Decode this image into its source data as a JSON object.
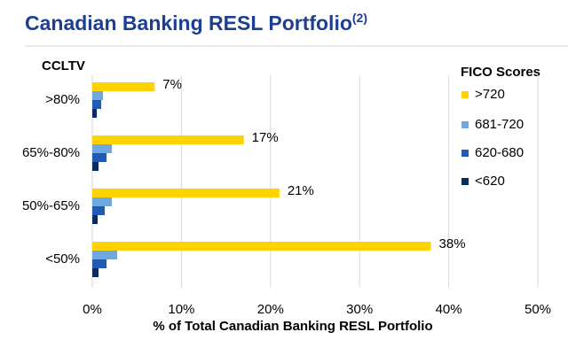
{
  "chart_data": {
    "type": "bar",
    "orientation": "horizontal",
    "title": "Canadian Banking RESL Portfolio",
    "title_superscript": "(2)",
    "y_label": "CCLTV",
    "x_label": "% of Total Canadian Banking RESL Portfolio",
    "legend_title": "FICO Scores",
    "legend_position": "upper right",
    "categories": [
      ">80%",
      "65%-80%",
      "50%-65%",
      "<50%"
    ],
    "series": [
      {
        "name": ">720",
        "color": "#ffd200",
        "values": [
          7,
          17,
          21,
          38
        ],
        "value_labels": [
          "7%",
          "17%",
          "21%",
          "38%"
        ]
      },
      {
        "name": "681-720",
        "color": "#6fa8e0",
        "values": [
          1.2,
          2.2,
          2.2,
          2.8
        ]
      },
      {
        "name": "620-680",
        "color": "#1f5bb5",
        "values": [
          1,
          1.6,
          1.4,
          1.6
        ]
      },
      {
        "name": "<620",
        "color": "#0b2a5e",
        "values": [
          0.5,
          0.7,
          0.6,
          0.7
        ]
      }
    ],
    "xlim": [
      0,
      50
    ],
    "xticks": [
      {
        "value": 0,
        "label": "0%"
      },
      {
        "value": 10,
        "label": "10%"
      },
      {
        "value": 20,
        "label": "20%"
      },
      {
        "value": 30,
        "label": "30%"
      },
      {
        "value": 40,
        "label": "40%"
      },
      {
        "value": 50,
        "label": "50%"
      }
    ],
    "grid": true
  }
}
